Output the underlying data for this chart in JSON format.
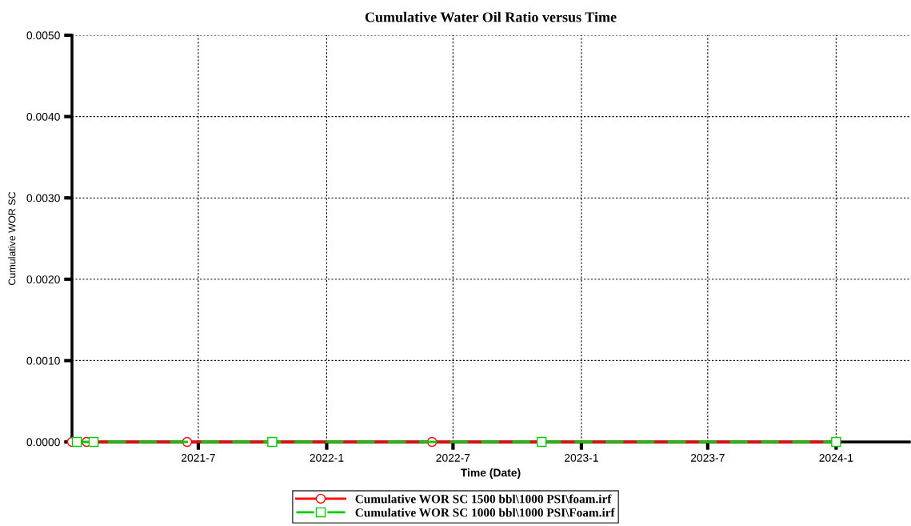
{
  "chart_data": {
    "type": "line",
    "title": "Cumulative Water Oil Ratio versus Time",
    "xlabel": "Time (Date)",
    "ylabel": "Cumulative WOR SC",
    "series": [
      {
        "name": "Cumulative WOR SC 1500 bbl\\1000 PSI\\foam.irf",
        "color": "#ff0000",
        "marker": "circle",
        "line_style": "solid",
        "x": [
          "2021-01-01",
          "2021-01-22",
          "2021-06-15",
          "2022-06-01",
          "2024-01-01"
        ],
        "values": [
          0,
          0,
          0,
          0,
          0
        ]
      },
      {
        "name": "Cumulative WOR SC 1000 bbl\\1000 PSI\\Foam.irf",
        "color": "#00cc00",
        "marker": "square",
        "line_style": "dashed",
        "x": [
          "2021-01-08",
          "2021-02-01",
          "2021-10-15",
          "2022-11-05",
          "2024-01-01"
        ],
        "values": [
          0,
          0,
          0,
          0,
          0
        ]
      }
    ],
    "xlim": [
      "2021-01-01",
      "2024-04-15"
    ],
    "xticks": [
      {
        "value": "2021-07-01",
        "label": "2021-7"
      },
      {
        "value": "2022-01-01",
        "label": "2022-1"
      },
      {
        "value": "2022-07-01",
        "label": "2022-7"
      },
      {
        "value": "2023-01-01",
        "label": "2023-1"
      },
      {
        "value": "2023-07-01",
        "label": "2023-7"
      },
      {
        "value": "2024-01-01",
        "label": "2024-1"
      }
    ],
    "ylim": [
      0,
      0.005
    ],
    "yticks": [
      {
        "value": 0,
        "label": "0.0000"
      },
      {
        "value": 0.001,
        "label": "0.0010"
      },
      {
        "value": 0.002,
        "label": "0.0020"
      },
      {
        "value": 0.003,
        "label": "0.0030"
      },
      {
        "value": 0.004,
        "label": "0.0040"
      },
      {
        "value": 0.005,
        "label": "0.0050"
      }
    ],
    "grid": true,
    "legend": "bottom"
  }
}
